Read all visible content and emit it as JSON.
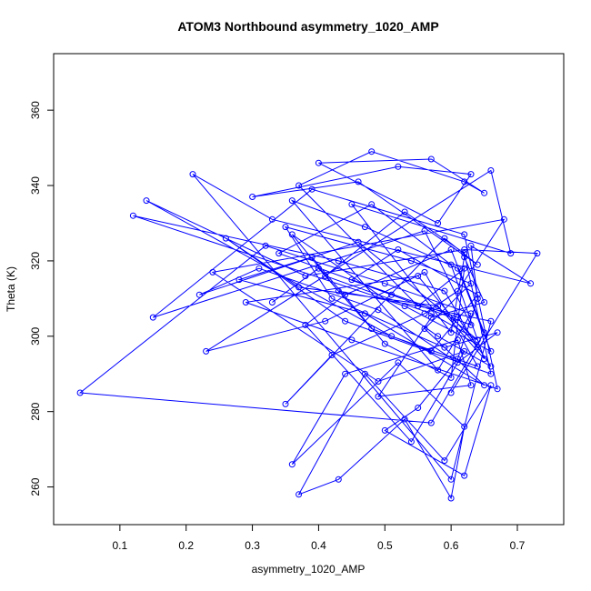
{
  "chart_data": {
    "type": "scatter",
    "title": "ATOM3 Northbound asymmetry_1020_AMP",
    "xlabel": "asymmetry_1020_AMP",
    "ylabel": "Theta (K)",
    "xlim": [
      0.0,
      0.77
    ],
    "ylim": [
      250,
      375
    ],
    "x_ticks": [
      "0.1",
      "0.2",
      "0.3",
      "0.4",
      "0.5",
      "0.6",
      "0.7"
    ],
    "y_ticks": [
      "260",
      "280",
      "300",
      "320",
      "340",
      "360"
    ],
    "grid": false,
    "legend": "none",
    "series": [
      {
        "color": "#0000ff",
        "marker": "open-circle",
        "connected": true,
        "x": [
          0.33,
          0.4,
          0.48,
          0.57,
          0.64,
          0.52,
          0.45,
          0.61,
          0.66,
          0.58,
          0.36,
          0.43,
          0.55,
          0.62,
          0.6,
          0.5,
          0.39,
          0.28,
          0.47,
          0.65,
          0.56,
          0.63,
          0.54,
          0.35,
          0.42,
          0.59,
          0.67,
          0.61,
          0.49,
          0.31,
          0.22,
          0.46,
          0.64,
          0.57,
          0.41,
          0.53,
          0.62,
          0.66,
          0.44,
          0.26,
          0.37,
          0.58,
          0.65,
          0.6,
          0.48,
          0.34,
          0.51,
          0.63,
          0.56,
          0.15,
          0.39,
          0.62,
          0.67,
          0.45,
          0.29,
          0.55,
          0.64,
          0.59,
          0.43,
          0.12,
          0.53,
          0.66,
          0.61,
          0.47,
          0.36,
          0.58,
          0.63,
          0.5,
          0.32,
          0.04,
          0.57,
          0.65,
          0.6,
          0.44,
          0.38,
          0.54,
          0.62,
          0.49,
          0.24,
          0.68,
          0.61,
          0.56,
          0.42,
          0.35,
          0.59,
          0.64,
          0.46,
          0.3,
          0.52,
          0.63,
          0.58,
          0.4,
          0.57,
          0.65,
          0.62,
          0.48,
          0.37,
          0.55,
          0.66,
          0.6,
          0.21,
          0.33,
          0.72,
          0.63,
          0.64,
          0.61,
          0.55,
          0.5,
          0.62,
          0.66,
          0.59,
          0.47,
          0.37,
          0.43,
          0.53,
          0.6,
          0.62,
          0.52,
          0.36,
          0.44,
          0.61,
          0.63,
          0.49,
          0.57,
          0.65,
          0.62,
          0.6,
          0.45,
          0.69,
          0.66,
          0.23,
          0.41,
          0.56,
          0.64,
          0.51,
          0.14,
          0.38,
          0.62,
          0.73,
          0.6
        ],
        "y": [
          309,
          318,
          302,
          296,
          311,
          323,
          315,
          305,
          292,
          300,
          327,
          312,
          308,
          318,
          289,
          298,
          321,
          315,
          306,
          287,
          302,
          314,
          320,
          329,
          310,
          297,
          301,
          293,
          307,
          318,
          311,
          325,
          299,
          306,
          316,
          333,
          322,
          290,
          304,
          326,
          313,
          308,
          294,
          319,
          335,
          322,
          311,
          303,
          328,
          305,
          339,
          327,
          286,
          299,
          309,
          316,
          297,
          312,
          320,
          332,
          308,
          296,
          318,
          329,
          336,
          291,
          306,
          314,
          324,
          285,
          277,
          301,
          323,
          311,
          303,
          272,
          296,
          288,
          317,
          331,
          312,
          306,
          295,
          282,
          326,
          319,
          341,
          337,
          345,
          343,
          330,
          346,
          347,
          338,
          341,
          349,
          340,
          308,
          304,
          262,
          343,
          331,
          314,
          324,
          310,
          294,
          281,
          275,
          263,
          287,
          267,
          290,
          258,
          262,
          278,
          257,
          276,
          293,
          266,
          290,
          299,
          287,
          284,
          305,
          309,
          321,
          301,
          335,
          322,
          344,
          296,
          304,
          317,
          292,
          300,
          336,
          316,
          323,
          322,
          285
        ]
      }
    ]
  }
}
